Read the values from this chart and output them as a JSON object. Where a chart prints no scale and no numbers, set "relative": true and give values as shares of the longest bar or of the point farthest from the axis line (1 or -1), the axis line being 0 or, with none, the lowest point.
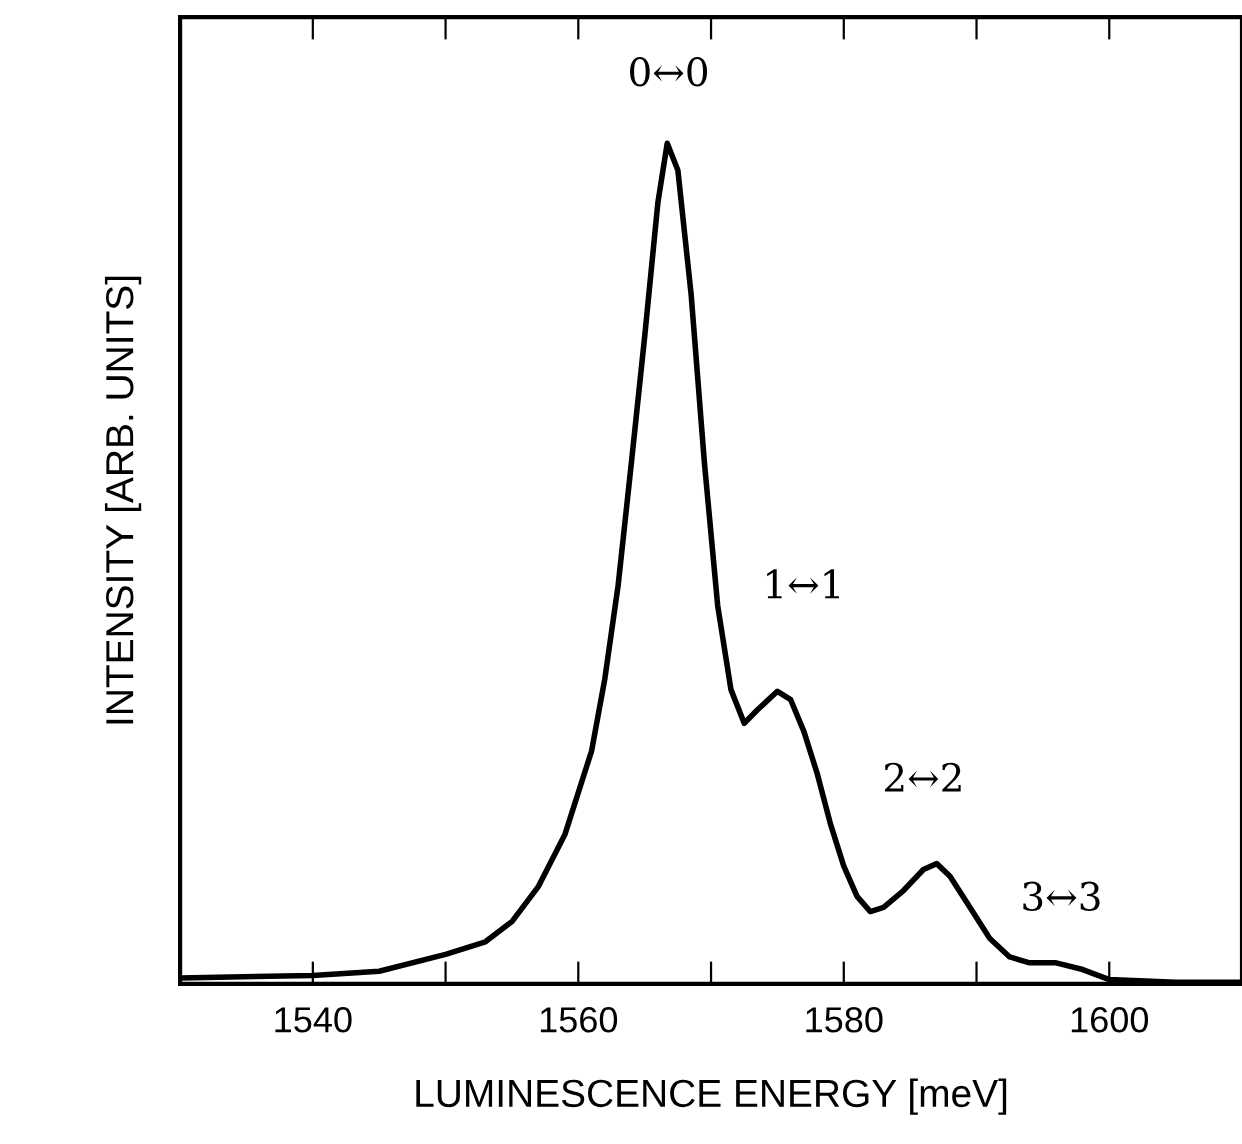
{
  "chart_data": {
    "type": "line",
    "relative": true,
    "xlabel": "LUMINESCENCE ENERGY [meV]",
    "ylabel": "INTENSITY [ARB. UNITS]",
    "xlim": [
      1530,
      1610
    ],
    "xticks": [
      1540,
      {
        "value": 1550,
        "label": null
      },
      1560,
      {
        "value": 1570,
        "label": null
      },
      1580,
      {
        "value": 1590,
        "label": null
      },
      1600
    ],
    "grid": false,
    "marker": "none",
    "line_style": "solid",
    "series": [
      {
        "color": "#000000",
        "x": [
          1530,
          1540,
          1545,
          1550,
          1553,
          1555,
          1557,
          1559,
          1561,
          1562,
          1563,
          1564,
          1565,
          1566,
          1566.7,
          1567.5,
          1568.5,
          1569.5,
          1570.5,
          1571.5,
          1572.5,
          1573.5,
          1575,
          1576,
          1577,
          1578,
          1579,
          1580,
          1581,
          1582,
          1583,
          1584.5,
          1586,
          1587,
          1588,
          1589.5,
          1591,
          1592.5,
          1594,
          1596,
          1598,
          1600,
          1605,
          1610
        ],
        "values": [
          0.007,
          0.01,
          0.015,
          0.035,
          0.05,
          0.074,
          0.116,
          0.178,
          0.277,
          0.363,
          0.474,
          0.62,
          0.77,
          0.93,
          1.0,
          0.968,
          0.82,
          0.62,
          0.45,
          0.35,
          0.31,
          0.326,
          0.348,
          0.338,
          0.3,
          0.25,
          0.19,
          0.14,
          0.104,
          0.086,
          0.091,
          0.111,
          0.136,
          0.143,
          0.128,
          0.091,
          0.054,
          0.032,
          0.025,
          0.025,
          0.017,
          0.005,
          0.002,
          0.002
        ]
      }
    ],
    "annotations": [
      "0↔0",
      "1↔1",
      "2↔2",
      "3↔3"
    ]
  }
}
